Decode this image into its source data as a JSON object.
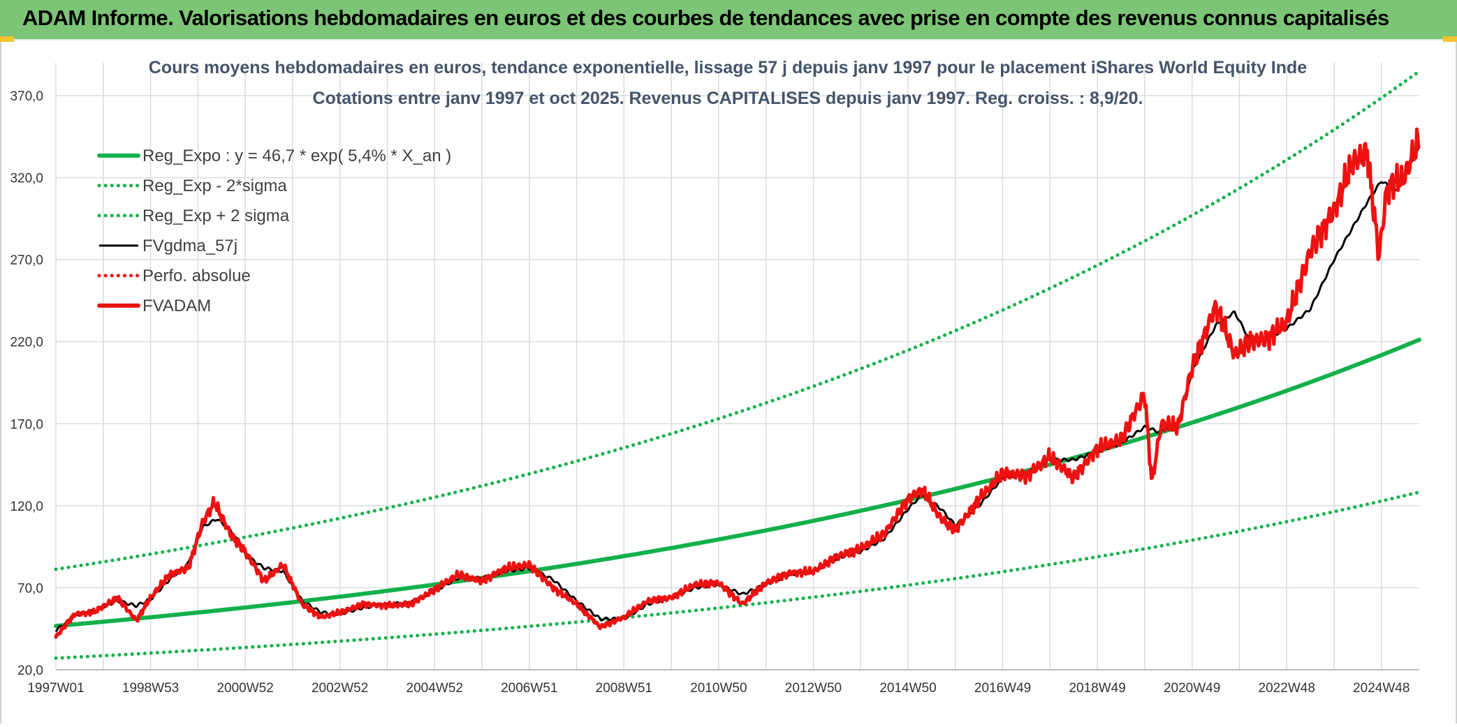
{
  "banner": {
    "title": "ADAM Informe. Valorisations hebdomadaires en euros et des courbes de tendances avec prise en compte des revenus connus capitalisés"
  },
  "colors": {
    "banner_bg": "#7cc576",
    "reg_green": "#13b04b",
    "black": "#000000",
    "red": "#ee1111",
    "grid": "#dcdcdc",
    "title_text": "#44546a"
  },
  "chart_data": {
    "type": "line",
    "title": "Cours moyens hebdomadaires en euros, tendance exponentielle, lissage 57 j depuis janv 1997 pour le placement iShares World Equity Inde",
    "subtitle": "Cotations entre janv 1997 et oct 2025. Revenus CAPITALISES depuis janv 1997. Reg. croiss. : 8,9/20.",
    "xlabel": "",
    "ylabel": "",
    "x_range": [
      1997.0,
      2025.8
    ],
    "ylim": [
      20,
      390
    ],
    "y_ticks": [
      20,
      70,
      120,
      170,
      220,
      270,
      320,
      370
    ],
    "y_tick_labels": [
      "20,0",
      "70,0",
      "120,0",
      "170,0",
      "220,0",
      "270,0",
      "320,0",
      "370,0"
    ],
    "x_ticks": [
      1997.0,
      1999.0,
      2001.0,
      2003.0,
      2005.0,
      2007.0,
      2009.0,
      2011.0,
      2013.0,
      2015.0,
      2017.0,
      2019.0,
      2021.0,
      2023.0,
      2025.0
    ],
    "x_tick_labels": [
      "1997W01",
      "1998W53",
      "2000W52",
      "2002W52",
      "2004W52",
      "2006W51",
      "2008W51",
      "2010W50",
      "2012W50",
      "2014W50",
      "2016W49",
      "2018W49",
      "2020W49",
      "2022W48",
      "2024W48"
    ],
    "grid": true,
    "legend_position": "top-left",
    "regression": {
      "base": 46.7,
      "rate": 0.054,
      "upper_factor": 1.74,
      "lower_factor": 0.58
    },
    "series": [
      {
        "name": "Reg_Expo : y = 46,7 * exp( 5,4% *  X_an )",
        "style": "solid-thick",
        "color": "#13b04b",
        "kind": "exp",
        "factor": 1.0,
        "x": [
          1997.0,
          1999.0,
          2001.0,
          2003.0,
          2005.0,
          2007.0,
          2009.0,
          2011.0,
          2013.0,
          2015.0,
          2017.0,
          2019.0,
          2021.0,
          2023.0,
          2025.8
        ],
        "values": [
          46.7,
          52.0,
          58.0,
          64.6,
          72.0,
          80.3,
          89.4,
          99.7,
          111.1,
          123.8,
          138.0,
          153.8,
          171.3,
          191.0,
          222.0
        ]
      },
      {
        "name": "Reg_Exp - 2*sigma",
        "style": "dotted",
        "color": "#13b04b",
        "kind": "exp",
        "factor": 0.58,
        "x": [
          1997.0,
          2001.0,
          2005.0,
          2009.0,
          2013.0,
          2017.0,
          2021.0,
          2025.8
        ],
        "values": [
          27.1,
          33.6,
          41.8,
          51.9,
          64.4,
          80.0,
          99.4,
          128.5
        ]
      },
      {
        "name": "Reg_Exp + 2 sigma",
        "style": "dotted",
        "color": "#13b04b",
        "kind": "exp",
        "factor": 1.74,
        "x": [
          1997.0,
          2001.0,
          2005.0,
          2009.0,
          2013.0,
          2017.0,
          2021.0,
          2025.8
        ],
        "values": [
          81.3,
          100.9,
          125.3,
          155.6,
          193.3,
          240.1,
          298.1,
          387.0
        ]
      },
      {
        "name": "FVgdma_57j",
        "style": "solid",
        "color": "#000000",
        "kind": "smooth",
        "x": [
          1997.0,
          1997.4,
          1997.8,
          1998.3,
          1998.7,
          1999.0,
          1999.4,
          1999.8,
          2000.1,
          2000.4,
          2000.7,
          2001.0,
          2001.4,
          2001.8,
          2002.2,
          2002.6,
          2003.0,
          2003.5,
          2004.0,
          2004.5,
          2005.0,
          2005.5,
          2006.0,
          2006.5,
          2007.0,
          2007.5,
          2008.0,
          2008.5,
          2009.0,
          2009.5,
          2010.0,
          2010.5,
          2011.0,
          2011.5,
          2012.0,
          2012.5,
          2013.0,
          2013.5,
          2014.0,
          2014.5,
          2015.0,
          2015.3,
          2015.7,
          2016.0,
          2016.5,
          2017.0,
          2017.5,
          2018.0,
          2018.5,
          2019.0,
          2019.5,
          2020.0,
          2020.3,
          2020.7,
          2021.0,
          2021.5,
          2021.9,
          2022.2,
          2022.6,
          2023.0,
          2023.5,
          2024.0,
          2024.4,
          2024.7,
          2025.0,
          2025.3,
          2025.8
        ],
        "values": [
          44,
          53,
          56,
          62,
          59,
          63,
          75,
          85,
          107,
          112,
          105,
          90,
          82,
          80,
          62,
          55,
          54,
          58,
          60,
          61,
          68,
          76,
          76,
          80,
          82,
          75,
          62,
          51,
          51,
          60,
          64,
          70,
          72,
          66,
          72,
          78,
          80,
          88,
          92,
          100,
          118,
          127,
          118,
          108,
          120,
          137,
          140,
          148,
          148,
          153,
          158,
          168,
          165,
          170,
          202,
          230,
          238,
          222,
          222,
          228,
          240,
          270,
          290,
          305,
          318,
          312,
          338
        ]
      },
      {
        "name": "Perfo. absolue",
        "style": "dotted",
        "color": "#ee1111",
        "kind": "none",
        "x": [],
        "values": []
      },
      {
        "name": "FVADAM",
        "style": "solid-thick",
        "color": "#ee1111",
        "kind": "noisy",
        "x": [
          1997.0,
          1997.4,
          1997.8,
          1998.3,
          1998.7,
          1999.0,
          1999.4,
          1999.8,
          2000.1,
          2000.35,
          2000.7,
          2001.0,
          2001.4,
          2001.8,
          2002.2,
          2002.6,
          2003.0,
          2003.5,
          2004.0,
          2004.5,
          2005.0,
          2005.5,
          2006.0,
          2006.5,
          2007.0,
          2007.5,
          2008.0,
          2008.5,
          2009.0,
          2009.5,
          2010.0,
          2010.5,
          2011.0,
          2011.5,
          2012.0,
          2012.5,
          2013.0,
          2013.5,
          2014.0,
          2014.5,
          2015.0,
          2015.3,
          2015.7,
          2016.0,
          2016.5,
          2017.0,
          2017.5,
          2018.0,
          2018.5,
          2019.0,
          2019.5,
          2020.0,
          2020.15,
          2020.35,
          2020.7,
          2021.0,
          2021.5,
          2021.9,
          2022.2,
          2022.6,
          2023.0,
          2023.5,
          2024.0,
          2024.4,
          2024.7,
          2024.95,
          2025.1,
          2025.25,
          2025.45,
          2025.8
        ],
        "values": [
          40,
          54,
          55,
          64,
          50,
          64,
          78,
          82,
          110,
          122,
          102,
          92,
          74,
          84,
          60,
          52,
          55,
          60,
          59,
          60,
          69,
          78,
          74,
          82,
          84,
          70,
          60,
          46,
          52,
          62,
          64,
          72,
          73,
          60,
          73,
          79,
          80,
          89,
          94,
          103,
          124,
          130,
          112,
          105,
          124,
          140,
          138,
          150,
          137,
          155,
          160,
          188,
          134,
          170,
          168,
          204,
          242,
          212,
          220,
          222,
          232,
          275,
          300,
          330,
          335,
          272,
          310,
          318,
          318,
          344
        ]
      }
    ]
  }
}
